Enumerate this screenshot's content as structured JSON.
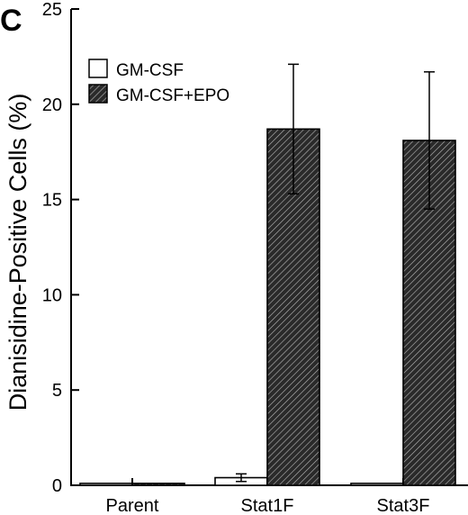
{
  "panel_label": "C",
  "colors": {
    "axis": "#000000",
    "bar_outline": "#000000",
    "open_fill": "#ffffff",
    "hatch_bg": "#2a2a2a",
    "hatch_line": "#b8b8b8"
  },
  "chart_data": {
    "type": "bar",
    "title": "",
    "xlabel": "",
    "ylabel": "Dianisidine-Positive Cells (%)",
    "ylim": [
      0,
      25
    ],
    "yticks": [
      0,
      5,
      10,
      15,
      20,
      25
    ],
    "categories": [
      "Parent",
      "Stat1F",
      "Stat3F"
    ],
    "legend_position": "top-left",
    "grid": false,
    "series": [
      {
        "name": "GM-CSF",
        "pattern": "open",
        "values": [
          0.1,
          0.4,
          0.1
        ],
        "errors": [
          0,
          0.2,
          0
        ]
      },
      {
        "name": "GM-CSF+EPO",
        "pattern": "hatched",
        "values": [
          0.1,
          18.7,
          18.1
        ],
        "errors": [
          0,
          3.4,
          3.6
        ]
      }
    ]
  }
}
